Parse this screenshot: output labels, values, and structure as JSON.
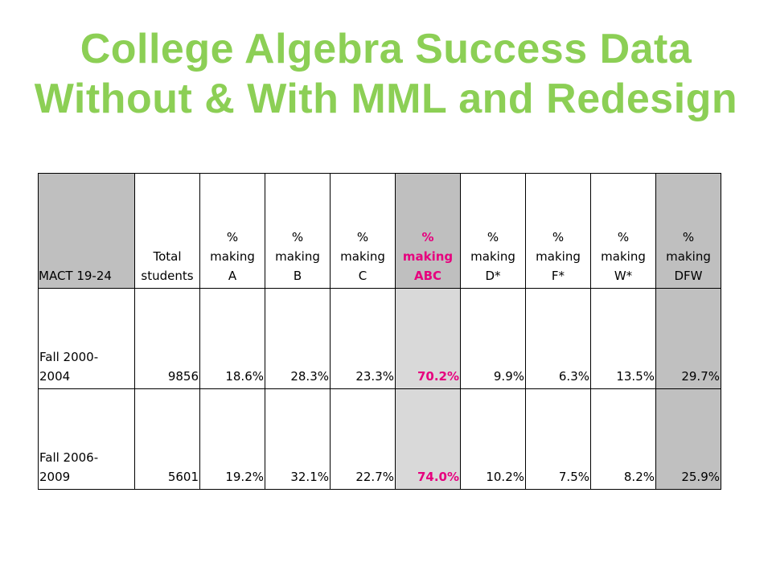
{
  "title": {
    "line1": "College Algebra Success Data",
    "line2": "Without & With MML and Redesign"
  },
  "colors": {
    "title": "#8ccf55",
    "accent_abc": "#e6007e",
    "gray_header": "#bfbfbf",
    "gray_light": "#d9d9d9",
    "gray_mid": "#c0c0c0"
  },
  "table": {
    "headers": {
      "mact": "MACT 19-24",
      "total": [
        "Total",
        "students"
      ],
      "a": [
        "%",
        "making",
        "A"
      ],
      "b": [
        "%",
        "making",
        "B"
      ],
      "c": [
        "%",
        "making",
        "C"
      ],
      "abc": [
        "%",
        "making",
        "ABC"
      ],
      "d": [
        "%",
        "making",
        "D*"
      ],
      "f": [
        "%",
        "making",
        "F*"
      ],
      "w": [
        "%",
        "making",
        "W*"
      ],
      "dfw": [
        "%",
        "making",
        "DFW"
      ]
    },
    "rows": [
      {
        "label": [
          "Fall 2000-",
          "2004"
        ],
        "total": "9856",
        "a": "18.6%",
        "b": "28.3%",
        "c": "23.3%",
        "abc": "70.2%",
        "d": "9.9%",
        "f": "6.3%",
        "w": "13.5%",
        "dfw": "29.7%"
      },
      {
        "label": [
          "Fall 2006-",
          "2009"
        ],
        "total": "5601",
        "a": "19.2%",
        "b": "32.1%",
        "c": "22.7%",
        "abc": "74.0%",
        "d": "10.2%",
        "f": "7.5%",
        "w": "8.2%",
        "dfw": "25.9%"
      }
    ]
  }
}
